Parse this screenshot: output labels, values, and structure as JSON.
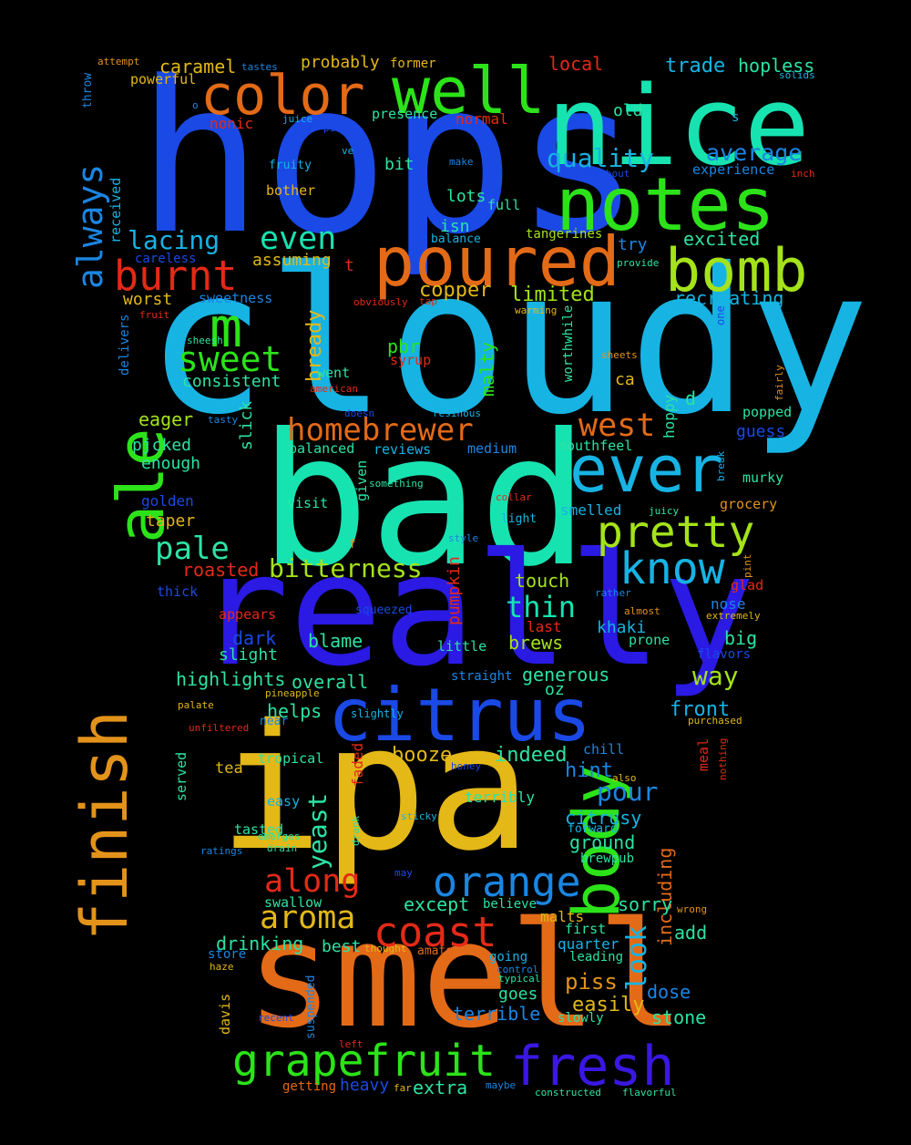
{
  "palette": {
    "background": "#000000",
    "blue": "#1a49e6",
    "sky": "#17b3e3",
    "teal": "#17e3b1",
    "green": "#2ce31a",
    "lime": "#a4e31a",
    "yellow": "#e3b817",
    "orange": "#e36a17",
    "red": "#e32a17",
    "violet": "#3a17e3",
    "azure": "#1a86e3"
  },
  "words": [
    {
      "text": "hops",
      "color": "#1a49e6",
      "weight": 1.0
    },
    {
      "text": "cloudy",
      "color": "#17b3e3",
      "weight": 0.98
    },
    {
      "text": "bad",
      "color": "#17e3b1",
      "weight": 0.95
    },
    {
      "text": "really",
      "color": "#2a1ae3",
      "weight": 0.9
    },
    {
      "text": "ipa",
      "color": "#e3b817",
      "weight": 0.92
    },
    {
      "text": "smell",
      "color": "#e36a17",
      "weight": 0.9
    },
    {
      "text": "nice",
      "color": "#17e3b1",
      "weight": 0.6
    },
    {
      "text": "citrus",
      "color": "#1a49e6",
      "weight": 0.5
    },
    {
      "text": "notes",
      "color": "#2ce31a",
      "weight": 0.45
    },
    {
      "text": "well",
      "color": "#2ce31a",
      "weight": 0.4
    },
    {
      "text": "color",
      "color": "#e36a17",
      "weight": 0.35
    },
    {
      "text": "poured",
      "color": "#e36a17",
      "weight": 0.4
    },
    {
      "text": "bomb",
      "color": "#a4e31a",
      "weight": 0.38
    },
    {
      "text": "ever",
      "color": "#17b3e3",
      "weight": 0.42
    },
    {
      "text": "ale",
      "color": "#2ce31a",
      "weight": 0.42
    },
    {
      "text": "finish",
      "color": "#e3931a",
      "weight": 0.38
    },
    {
      "text": "body",
      "color": "#2ce31a",
      "weight": 0.4
    },
    {
      "text": "m",
      "color": "#2ce31a",
      "weight": 0.3
    },
    {
      "text": "orange",
      "color": "#1a86e3",
      "weight": 0.3
    },
    {
      "text": "fresh",
      "color": "#3a17e3",
      "weight": 0.3
    },
    {
      "text": "grapefruit",
      "color": "#2ce31a",
      "weight": 0.28
    },
    {
      "text": "pretty",
      "color": "#a4e31a",
      "weight": 0.3
    },
    {
      "text": "know",
      "color": "#17b3e3",
      "weight": 0.3
    },
    {
      "text": "coast",
      "color": "#e32a17",
      "weight": 0.28
    },
    {
      "text": "aroma",
      "color": "#e3b817",
      "weight": 0.25
    },
    {
      "text": "along",
      "color": "#e32a17",
      "weight": 0.22
    },
    {
      "text": "homebrewer",
      "color": "#e36a17",
      "weight": 0.22
    },
    {
      "text": "west",
      "color": "#e36a17",
      "weight": 0.22
    },
    {
      "text": "burnt",
      "color": "#e32a17",
      "weight": 0.25
    },
    {
      "text": "sweet",
      "color": "#2ce31a",
      "weight": 0.22
    },
    {
      "text": "always",
      "color": "#1a86e3",
      "weight": 0.22
    },
    {
      "text": "pale",
      "color": "#2ce3a4",
      "weight": 0.22
    },
    {
      "text": "even",
      "color": "#17e3b1",
      "weight": 0.22
    },
    {
      "text": "lacing",
      "color": "#17b3e3",
      "weight": 0.18
    },
    {
      "text": "quality",
      "color": "#17b3e3",
      "weight": 0.18
    },
    {
      "text": "average",
      "color": "#1a86e3",
      "weight": 0.16
    },
    {
      "text": "trade",
      "color": "#17b3e3",
      "weight": 0.15
    },
    {
      "text": "hopless",
      "color": "#2ce3a4",
      "weight": 0.14
    },
    {
      "text": "bitterness",
      "color": "#a4e31a",
      "weight": 0.18
    },
    {
      "text": "thin",
      "color": "#17e3b1",
      "weight": 0.2
    },
    {
      "text": "look",
      "color": "#17b3e3",
      "weight": 0.18
    },
    {
      "text": "pour",
      "color": "#1a86e3",
      "weight": 0.18
    },
    {
      "text": "yeast",
      "color": "#2ce3a4",
      "weight": 0.18
    },
    {
      "text": "booze",
      "color": "#e3b817",
      "weight": 0.16
    },
    {
      "text": "indeed",
      "color": "#2ce3a4",
      "weight": 0.16
    },
    {
      "text": "overall",
      "color": "#2ce3a4",
      "weight": 0.14
    },
    {
      "text": "highlights",
      "color": "#2ce3a4",
      "weight": 0.14
    },
    {
      "text": "way",
      "color": "#a4e31a",
      "weight": 0.18
    },
    {
      "text": "piss",
      "color": "#e3931a",
      "weight": 0.16
    },
    {
      "text": "dose",
      "color": "#1a86e3",
      "weight": 0.15
    },
    {
      "text": "bready",
      "color": "#e3b817",
      "weight": 0.15
    },
    {
      "text": "including",
      "color": "#e36a17",
      "weight": 0.13
    },
    {
      "text": "limited",
      "color": "#a4e31a",
      "weight": 0.14
    },
    {
      "text": "copper",
      "color": "#e3b817",
      "weight": 0.14
    },
    {
      "text": "excited",
      "color": "#2ce3a4",
      "weight": 0.12
    },
    {
      "text": "recreating",
      "color": "#17b3e3",
      "weight": 0.12
    },
    {
      "text": "caramel",
      "color": "#e3b817",
      "weight": 0.12
    },
    {
      "text": "probably",
      "color": "#e3b817",
      "weight": 0.11
    },
    {
      "text": "local",
      "color": "#e32a17",
      "weight": 0.12
    },
    {
      "text": "pbr",
      "color": "#2ce31a",
      "weight": 0.12
    },
    {
      "text": "malty",
      "color": "#2ce31a",
      "weight": 0.12
    },
    {
      "text": "eager",
      "color": "#a4e31a",
      "weight": 0.12
    },
    {
      "text": "worst",
      "color": "#e3b817",
      "weight": 0.12
    },
    {
      "text": "roasted",
      "color": "#e32a17",
      "weight": 0.12
    },
    {
      "text": "touch",
      "color": "#a4e31a",
      "weight": 0.12
    },
    {
      "text": "dark",
      "color": "#1a49e6",
      "weight": 0.12
    },
    {
      "text": "blame",
      "color": "#2ce3a4",
      "weight": 0.12
    },
    {
      "text": "brews",
      "color": "#a4e31a",
      "weight": 0.12
    },
    {
      "text": "generous",
      "color": "#2ce3a4",
      "weight": 0.12
    },
    {
      "text": "front",
      "color": "#17b3e3",
      "weight": 0.13
    },
    {
      "text": "khaki",
      "color": "#17b3e3",
      "weight": 0.11
    },
    {
      "text": "big",
      "color": "#2ce3a4",
      "weight": 0.12
    },
    {
      "text": "hint",
      "color": "#1a86e3",
      "weight": 0.12
    },
    {
      "text": "citrusy",
      "color": "#17b3e3",
      "weight": 0.12
    },
    {
      "text": "ground",
      "color": "#2ce3a4",
      "weight": 0.12
    },
    {
      "text": "except",
      "color": "#2ce3a4",
      "weight": 0.12
    },
    {
      "text": "sorry",
      "color": "#2ce3a4",
      "weight": 0.12
    },
    {
      "text": "add",
      "color": "#2ce3a4",
      "weight": 0.12
    },
    {
      "text": "drinking",
      "color": "#2ce3a4",
      "weight": 0.12
    },
    {
      "text": "best",
      "color": "#2ce3a4",
      "weight": 0.11
    },
    {
      "text": "easily",
      "color": "#e3b817",
      "weight": 0.12
    },
    {
      "text": "goes",
      "color": "#2ce3a4",
      "weight": 0.11
    },
    {
      "text": "terrible",
      "color": "#1a86e3",
      "weight": 0.11
    },
    {
      "text": "stone",
      "color": "#2ce3a4",
      "weight": 0.11
    },
    {
      "text": "extra",
      "color": "#2ce3a4",
      "weight": 0.12
    },
    {
      "text": "heavy",
      "color": "#1a49e6",
      "weight": 0.11
    },
    {
      "text": "slight",
      "color": "#2ce3a4",
      "weight": 0.11
    },
    {
      "text": "helps",
      "color": "#2ce3a4",
      "weight": 0.11
    },
    {
      "text": "consistent",
      "color": "#2ce3a4",
      "weight": 0.11
    },
    {
      "text": "enough",
      "color": "#2ce3a4",
      "weight": 0.1
    },
    {
      "text": "pjcked",
      "color": "#2ce3a4",
      "weight": 0.1
    },
    {
      "text": "golden",
      "color": "#1a49e6",
      "weight": 0.1
    },
    {
      "text": "taper",
      "color": "#e3b817",
      "weight": 0.1
    },
    {
      "text": "reviews",
      "color": "#17b3e3",
      "weight": 0.1
    },
    {
      "text": "balanced",
      "color": "#2ce3a4",
      "weight": 0.1
    },
    {
      "text": "went",
      "color": "#2ce3a4",
      "weight": 0.1
    },
    {
      "text": "visit",
      "color": "#2ce3a4",
      "weight": 0.1
    },
    {
      "text": "guess",
      "color": "#1a49e6",
      "weight": 0.1
    },
    {
      "text": "mouthfeel",
      "color": "#2ce3a4",
      "weight": 0.1
    },
    {
      "text": "medium",
      "color": "#1a86e3",
      "weight": 0.09
    },
    {
      "text": "experience",
      "color": "#1a86e3",
      "weight": 0.09
    },
    {
      "text": "presence",
      "color": "#2ce3a4",
      "weight": 0.09
    },
    {
      "text": "normal",
      "color": "#e32a17",
      "weight": 0.1
    },
    {
      "text": "nonic",
      "color": "#e32a17",
      "weight": 0.1
    },
    {
      "text": "lots",
      "color": "#2ce3a4",
      "weight": 0.1
    },
    {
      "text": "isn",
      "color": "#2ce3a4",
      "weight": 0.1
    },
    {
      "text": "full",
      "color": "#2ce3a4",
      "weight": 0.09
    },
    {
      "text": "try",
      "color": "#1a86e3",
      "weight": 0.1
    },
    {
      "text": "bit",
      "color": "#2ce3a4",
      "weight": 0.1
    },
    {
      "text": "old",
      "color": "#2ce3a4",
      "weight": 0.1
    },
    {
      "text": "ca",
      "color": "#e3b817",
      "weight": 0.1
    },
    {
      "text": "d",
      "color": "#2ce3a4",
      "weight": 0.1
    },
    {
      "text": "t",
      "color": "#e32a17",
      "weight": 0.1
    },
    {
      "text": "s",
      "color": "#17b3e3",
      "weight": 0.08
    },
    {
      "text": "f",
      "color": "#e3931a",
      "weight": 0.08
    },
    {
      "text": "oz",
      "color": "#2ce3a4",
      "weight": 0.09
    },
    {
      "text": "assuming",
      "color": "#e3b817",
      "weight": 0.09
    },
    {
      "text": "sweetness",
      "color": "#1a86e3",
      "weight": 0.08
    },
    {
      "text": "bother",
      "color": "#e3b817",
      "weight": 0.08
    },
    {
      "text": "fruity",
      "color": "#17b3e3",
      "weight": 0.08
    },
    {
      "text": "received",
      "color": "#17b3e3",
      "weight": 0.08
    },
    {
      "text": "careless",
      "color": "#1a49e6",
      "weight": 0.08
    },
    {
      "text": "powerful",
      "color": "#e3b817",
      "weight": 0.08
    },
    {
      "text": "throw",
      "color": "#1a86e3",
      "weight": 0.07
    },
    {
      "text": "attempt",
      "color": "#e3931a",
      "weight": 0.06
    },
    {
      "text": "tastes",
      "color": "#1a86e3",
      "weight": 0.06
    },
    {
      "text": "former",
      "color": "#e3b817",
      "weight": 0.08
    },
    {
      "text": "juice",
      "color": "#17b3e3",
      "weight": 0.06
    },
    {
      "text": "pine",
      "color": "#1a49e6",
      "weight": 0.06
    },
    {
      "text": "ve",
      "color": "#17b3e3",
      "weight": 0.06
    },
    {
      "text": "make",
      "color": "#1a86e3",
      "weight": 0.06
    },
    {
      "text": "without",
      "color": "#1a49e6",
      "weight": 0.06
    },
    {
      "text": "inch",
      "color": "#e32a17",
      "weight": 0.06
    },
    {
      "text": "solids",
      "color": "#17b3e3",
      "weight": 0.06
    },
    {
      "text": "o",
      "color": "#1a86e3",
      "weight": 0.06
    },
    {
      "text": "tangerines",
      "color": "#a4e31a",
      "weight": 0.08
    },
    {
      "text": "balance",
      "color": "#17b3e3",
      "weight": 0.07
    },
    {
      "text": "provide",
      "color": "#2ce3a4",
      "weight": 0.06
    },
    {
      "text": "obviously",
      "color": "#e32a17",
      "weight": 0.06
    },
    {
      "text": "tap",
      "color": "#e32a17",
      "weight": 0.06
    },
    {
      "text": "fruit",
      "color": "#e32a17",
      "weight": 0.06
    },
    {
      "text": "warming",
      "color": "#e3b817",
      "weight": 0.06
    },
    {
      "text": "one",
      "color": "#1a49e6",
      "weight": 0.06
    },
    {
      "text": "worthwhile",
      "color": "#2ce3a4",
      "weight": 0.07
    },
    {
      "text": "delivers",
      "color": "#1a86e3",
      "weight": 0.07
    },
    {
      "text": "sheesh",
      "color": "#2ce3a4",
      "weight": 0.06
    },
    {
      "text": "syrup",
      "color": "#e32a17",
      "weight": 0.08
    },
    {
      "text": "american",
      "color": "#e32a17",
      "weight": 0.06
    },
    {
      "text": "sheets",
      "color": "#e3931a",
      "weight": 0.06
    },
    {
      "text": "fairly",
      "color": "#e3931a",
      "weight": 0.06
    },
    {
      "text": "resinous",
      "color": "#17b3e3",
      "weight": 0.06
    },
    {
      "text": "tasty",
      "color": "#1a86e3",
      "weight": 0.06
    },
    {
      "text": "doesn",
      "color": "#1a49e6",
      "weight": 0.06
    },
    {
      "text": "slick",
      "color": "#2ce3a4",
      "weight": 0.08
    },
    {
      "text": "hoppy",
      "color": "#2ce3a4",
      "weight": 0.07
    },
    {
      "text": "popped",
      "color": "#2ce3a4",
      "weight": 0.08
    },
    {
      "text": "break",
      "color": "#17b3e3",
      "weight": 0.06
    },
    {
      "text": "murky",
      "color": "#2ce3a4",
      "weight": 0.08
    },
    {
      "text": "grocery",
      "color": "#e3931a",
      "weight": 0.08
    },
    {
      "text": "given",
      "color": "#2ce3a4",
      "weight": 0.08
    },
    {
      "text": "something",
      "color": "#2ce3a4",
      "weight": 0.06
    },
    {
      "text": "collar",
      "color": "#e32a17",
      "weight": 0.06
    },
    {
      "text": "juicy",
      "color": "#2ce3a4",
      "weight": 0.06
    },
    {
      "text": "smelled",
      "color": "#17b3e3",
      "weight": 0.09
    },
    {
      "text": "light",
      "color": "#17b3e3",
      "weight": 0.07
    },
    {
      "text": "style",
      "color": "#1a86e3",
      "weight": 0.06
    },
    {
      "text": "pint",
      "color": "#e3931a",
      "weight": 0.06
    },
    {
      "text": "pumpkin",
      "color": "#e32a17",
      "weight": 0.09
    },
    {
      "text": "glad",
      "color": "#e32a17",
      "weight": 0.08
    },
    {
      "text": "rather",
      "color": "#1a86e3",
      "weight": 0.06
    },
    {
      "text": "almost",
      "color": "#e3931a",
      "weight": 0.06
    },
    {
      "text": "nose",
      "color": "#1a86e3",
      "weight": 0.09
    },
    {
      "text": "extremely",
      "color": "#e3b817",
      "weight": 0.06
    },
    {
      "text": "thick",
      "color": "#1a49e6",
      "weight": 0.08
    },
    {
      "text": "squeezed",
      "color": "#1a49e6",
      "weight": 0.07
    },
    {
      "text": "appears",
      "color": "#e32a17",
      "weight": 0.08
    },
    {
      "text": "last",
      "color": "#e32a17",
      "weight": 0.09
    },
    {
      "text": "prone",
      "color": "#2ce3a4",
      "weight": 0.08
    },
    {
      "text": "flavors",
      "color": "#1a49e6",
      "weight": 0.08
    },
    {
      "text": "little",
      "color": "#2ce3a4",
      "weight": 0.08
    },
    {
      "text": "straight",
      "color": "#1a86e3",
      "weight": 0.08
    },
    {
      "text": "pineapple",
      "color": "#e3b817",
      "weight": 0.06
    },
    {
      "text": "slightly",
      "color": "#17b3e3",
      "weight": 0.07
    },
    {
      "text": "palate",
      "color": "#e3b817",
      "weight": 0.06
    },
    {
      "text": "near",
      "color": "#1a86e3",
      "weight": 0.07
    },
    {
      "text": "unfiltered",
      "color": "#e32a17",
      "weight": 0.06
    },
    {
      "text": "purchased",
      "color": "#e3b817",
      "weight": 0.06
    },
    {
      "text": "meal",
      "color": "#e32a17",
      "weight": 0.08
    },
    {
      "text": "nothing",
      "color": "#e32a17",
      "weight": 0.06
    },
    {
      "text": "chill",
      "color": "#1a86e3",
      "weight": 0.08
    },
    {
      "text": "tropical",
      "color": "#2ce3a4",
      "weight": 0.08
    },
    {
      "text": "faded",
      "color": "#e32a17",
      "weight": 0.08
    },
    {
      "text": "honey",
      "color": "#1a49e6",
      "weight": 0.06
    },
    {
      "text": "also",
      "color": "#e3b817",
      "weight": 0.06
    },
    {
      "text": "tea",
      "color": "#e3b817",
      "weight": 0.09
    },
    {
      "text": "served",
      "color": "#2ce3a4",
      "weight": 0.08
    },
    {
      "text": "easy",
      "color": "#17b3e3",
      "weight": 0.08
    },
    {
      "text": "terribly",
      "color": "#2ce3a4",
      "weight": 0.08
    },
    {
      "text": "sticky",
      "color": "#17b3e3",
      "weight": 0.06
    },
    {
      "text": "forward",
      "color": "#17b3e3",
      "weight": 0.07
    },
    {
      "text": "tasted",
      "color": "#2ce3a4",
      "weight": 0.08
    },
    {
      "text": "emerges",
      "color": "#2ce3a4",
      "weight": 0.06
    },
    {
      "text": "drank",
      "color": "#2ce3a4",
      "weight": 0.06
    },
    {
      "text": "ratings",
      "color": "#1a86e3",
      "weight": 0.06
    },
    {
      "text": "drain",
      "color": "#2ce3a4",
      "weight": 0.06
    },
    {
      "text": "brewpub",
      "color": "#2ce3a4",
      "weight": 0.07
    },
    {
      "text": "may",
      "color": "#1a49e6",
      "weight": 0.06
    },
    {
      "text": "swallow",
      "color": "#2ce3a4",
      "weight": 0.08
    },
    {
      "text": "believe",
      "color": "#2ce3a4",
      "weight": 0.07
    },
    {
      "text": "wrong",
      "color": "#e3931a",
      "weight": 0.06
    },
    {
      "text": "malts",
      "color": "#e3b817",
      "weight": 0.08
    },
    {
      "text": "first",
      "color": "#2ce3a4",
      "weight": 0.08
    },
    {
      "text": "quarter",
      "color": "#17b3e3",
      "weight": 0.08
    },
    {
      "text": "leading",
      "color": "#2ce3a4",
      "weight": 0.07
    },
    {
      "text": "store",
      "color": "#1a86e3",
      "weight": 0.07
    },
    {
      "text": "thought",
      "color": "#e3b817",
      "weight": 0.06
    },
    {
      "text": "amateur",
      "color": "#e36a17",
      "weight": 0.07
    },
    {
      "text": "going",
      "color": "#17b3e3",
      "weight": 0.07
    },
    {
      "text": "control",
      "color": "#1a86e3",
      "weight": 0.06
    },
    {
      "text": "typical",
      "color": "#2ce3a4",
      "weight": 0.06
    },
    {
      "text": "haze",
      "color": "#e3b817",
      "weight": 0.06
    },
    {
      "text": "davis",
      "color": "#e3b817",
      "weight": 0.08
    },
    {
      "text": "suspended",
      "color": "#1a86e3",
      "weight": 0.07
    },
    {
      "text": "recent",
      "color": "#1a49e6",
      "weight": 0.06
    },
    {
      "text": "left",
      "color": "#e32a17",
      "weight": 0.06
    },
    {
      "text": "slowly",
      "color": "#2ce3a4",
      "weight": 0.07
    },
    {
      "text": "getting",
      "color": "#e36a17",
      "weight": 0.07
    },
    {
      "text": "far",
      "color": "#e3b817",
      "weight": 0.06
    },
    {
      "text": "maybe",
      "color": "#1a86e3",
      "weight": 0.06
    },
    {
      "text": "constructed",
      "color": "#2ce3a4",
      "weight": 0.06
    },
    {
      "text": "flavorful",
      "color": "#2ce3a4",
      "weight": 0.06
    }
  ]
}
